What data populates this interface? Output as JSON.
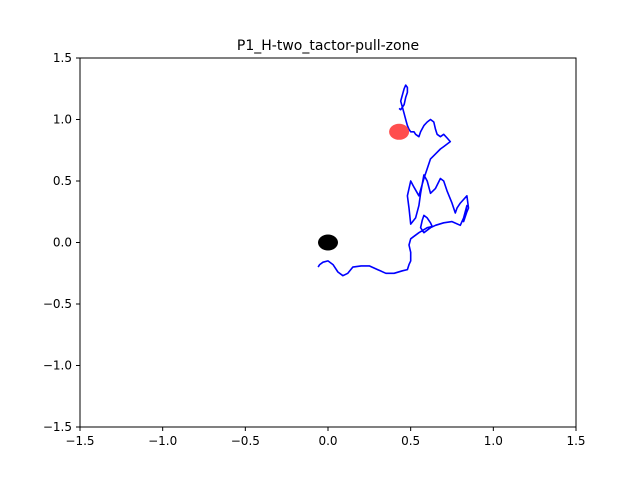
{
  "chart_data": {
    "type": "line",
    "title": "P1_H-two_tactor-pull-zone",
    "xlabel": "",
    "ylabel": "",
    "xlim": [
      -1.5,
      1.5
    ],
    "ylim": [
      -1.5,
      1.5
    ],
    "grid": false,
    "x_ticks": [
      -1.5,
      -1.0,
      -0.5,
      0.0,
      0.5,
      1.0,
      1.5
    ],
    "x_tick_labels": [
      "−1.5",
      "−1.0",
      "−0.5",
      "0.0",
      "0.5",
      "1.0",
      "1.5"
    ],
    "y_ticks": [
      -1.5,
      -1.0,
      -0.5,
      0.0,
      0.5,
      1.0,
      1.5
    ],
    "y_tick_labels": [
      "−1.5",
      "−1.0",
      "−0.5",
      "0.0",
      "0.5",
      "1.0",
      "1.5"
    ],
    "series": [
      {
        "color": "#0000ff",
        "x": [
          -0.06,
          -0.05,
          -0.03,
          0.0,
          0.03,
          0.06,
          0.09,
          0.12,
          0.15,
          0.2,
          0.25,
          0.3,
          0.35,
          0.4,
          0.45,
          0.48,
          0.49,
          0.5,
          0.5,
          0.49,
          0.5,
          0.52,
          0.55,
          0.6,
          0.63,
          0.62,
          0.6,
          0.58,
          0.57,
          0.56,
          0.58,
          0.6,
          0.62,
          0.65,
          0.7,
          0.75,
          0.8,
          0.82,
          0.84,
          0.83,
          0.82,
          0.84,
          0.85,
          0.84,
          0.8,
          0.78,
          0.77,
          0.75,
          0.72,
          0.7,
          0.68,
          0.65,
          0.62,
          0.6,
          0.58,
          0.56,
          0.55,
          0.53,
          0.5,
          0.49,
          0.48,
          0.5,
          0.52,
          0.55,
          0.58,
          0.6,
          0.62,
          0.65,
          0.68,
          0.7,
          0.72,
          0.74,
          0.72,
          0.7,
          0.68,
          0.66,
          0.65,
          0.64,
          0.62,
          0.6,
          0.58,
          0.56,
          0.55,
          0.53,
          0.52,
          0.5,
          0.49,
          0.48,
          0.47,
          0.46,
          0.45,
          0.46,
          0.47,
          0.48,
          0.48,
          0.47,
          0.46,
          0.44,
          0.45,
          0.44,
          0.43
        ],
        "y": [
          -0.2,
          -0.18,
          -0.16,
          -0.15,
          -0.18,
          -0.24,
          -0.27,
          -0.25,
          -0.2,
          -0.19,
          -0.19,
          -0.22,
          -0.25,
          -0.25,
          -0.23,
          -0.22,
          -0.18,
          -0.15,
          -0.08,
          -0.02,
          0.03,
          0.05,
          0.08,
          0.12,
          0.13,
          0.16,
          0.2,
          0.22,
          0.18,
          0.12,
          0.08,
          0.1,
          0.12,
          0.14,
          0.16,
          0.17,
          0.14,
          0.2,
          0.3,
          0.22,
          0.17,
          0.25,
          0.28,
          0.38,
          0.32,
          0.28,
          0.24,
          0.32,
          0.42,
          0.5,
          0.52,
          0.44,
          0.4,
          0.5,
          0.55,
          0.4,
          0.3,
          0.2,
          0.15,
          0.28,
          0.38,
          0.5,
          0.45,
          0.38,
          0.52,
          0.6,
          0.68,
          0.72,
          0.76,
          0.78,
          0.8,
          0.82,
          0.85,
          0.88,
          0.86,
          0.88,
          0.92,
          0.98,
          1.0,
          0.98,
          0.95,
          0.9,
          0.86,
          0.88,
          0.9,
          0.9,
          0.92,
          0.95,
          1.0,
          1.05,
          1.1,
          1.12,
          1.18,
          1.22,
          1.26,
          1.28,
          1.25,
          1.15,
          1.1,
          1.08,
          1.09
        ]
      }
    ],
    "markers": [
      {
        "x": 0.43,
        "y": 0.9,
        "color": "#ff3b3b",
        "opacity": 0.9
      },
      {
        "x": 0.0,
        "y": 0.0,
        "color": "#000000",
        "opacity": 1.0
      }
    ]
  }
}
